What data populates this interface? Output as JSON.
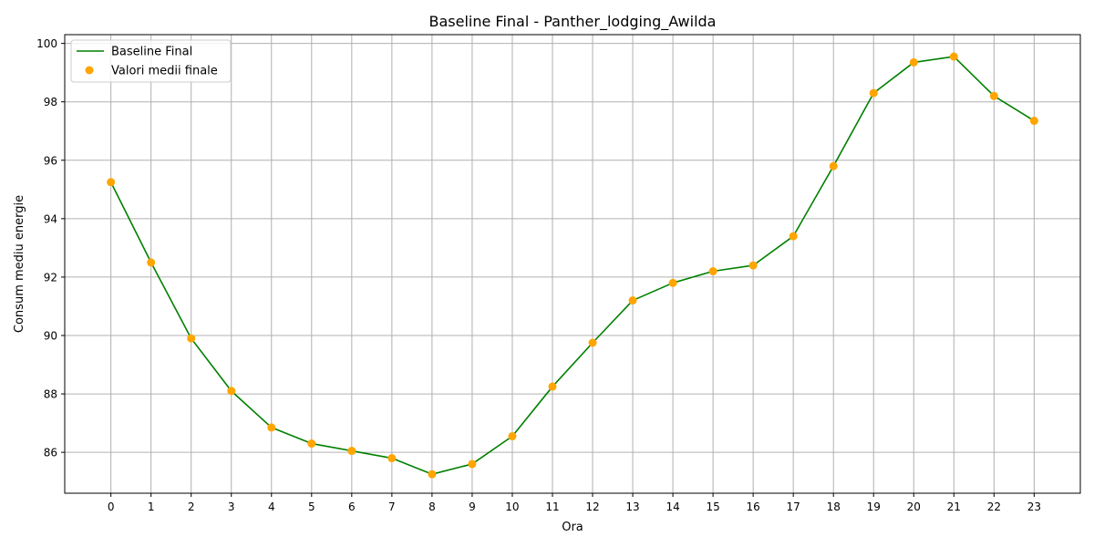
{
  "chart_data": {
    "type": "line",
    "title": "Baseline Final - Panther_lodging_Awilda",
    "xlabel": "Ora",
    "ylabel": "Consum mediu energie",
    "x": [
      0,
      1,
      2,
      3,
      4,
      5,
      6,
      7,
      8,
      9,
      10,
      11,
      12,
      13,
      14,
      15,
      16,
      17,
      18,
      19,
      20,
      21,
      22,
      23
    ],
    "x_ticks": [
      "0",
      "1",
      "2",
      "3",
      "4",
      "5",
      "6",
      "7",
      "8",
      "9",
      "10",
      "11",
      "12",
      "13",
      "14",
      "15",
      "16",
      "17",
      "18",
      "19",
      "20",
      "21",
      "22",
      "23"
    ],
    "y_ticks": [
      "86",
      "88",
      "90",
      "92",
      "94",
      "96",
      "98",
      "100"
    ],
    "xlim": [
      -1.15,
      24.15
    ],
    "ylim": [
      84.6,
      100.3
    ],
    "grid": true,
    "legend_position": "top-left",
    "series": [
      {
        "name": "Baseline Final",
        "kind": "line",
        "color": "#008000",
        "values": [
          95.25,
          92.5,
          89.9,
          88.1,
          86.85,
          86.3,
          86.05,
          85.8,
          85.25,
          85.6,
          86.55,
          88.25,
          89.75,
          91.2,
          91.8,
          92.2,
          92.4,
          93.4,
          95.8,
          98.3,
          99.35,
          99.55,
          98.2,
          97.35
        ]
      },
      {
        "name": "Valori medii finale",
        "kind": "scatter",
        "color": "#FFA500",
        "values": [
          95.25,
          92.5,
          89.9,
          88.1,
          86.85,
          86.3,
          86.05,
          85.8,
          85.25,
          85.6,
          86.55,
          88.25,
          89.75,
          91.2,
          91.8,
          92.2,
          92.4,
          93.4,
          95.8,
          98.3,
          99.35,
          99.55,
          98.2,
          97.35
        ]
      }
    ]
  }
}
